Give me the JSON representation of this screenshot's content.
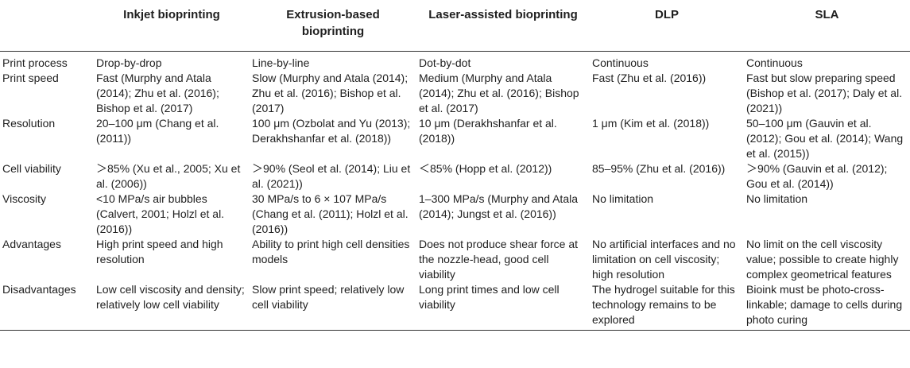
{
  "table": {
    "headers": [
      "",
      "Inkjet bioprinting",
      "Extrusion-based bioprinting",
      "Laser-assisted bioprinting",
      "DLP",
      "SLA"
    ],
    "rows": [
      {
        "label": "Print process",
        "cells": [
          "Drop-by-drop",
          "Line-by-line",
          "Dot-by-dot",
          "Continuous",
          "Continuous"
        ]
      },
      {
        "label": "Print speed",
        "cells": [
          "Fast (Murphy and Atala (2014); Zhu et al. (2016); Bishop et al. (2017)",
          "Slow (Murphy and Atala (2014); Zhu et al. (2016); Bishop et al. (2017)",
          "Medium (Murphy and Atala (2014); Zhu et al. (2016); Bishop et al. (2017)",
          "Fast (Zhu et al. (2016))",
          "Fast but slow preparing speed (Bishop et al. (2017); Daly et al. (2021))"
        ]
      },
      {
        "label": "Resolution",
        "cells": [
          "20–100 μm (Chang et al. (2011))",
          "100 μm (Ozbolat and Yu (2013); Derakhshanfar et al. (2018))",
          "10 μm (Derakhshanfar et al. (2018))",
          "1 μm (Kim et al. (2018))",
          "50–100 μm (Gauvin et al. (2012); Gou et al. (2014); Wang et al. (2015))"
        ]
      },
      {
        "label": "Cell viability",
        "cells": [
          "＞85% (Xu et al., 2005; Xu et al. (2006))",
          "＞90% (Seol et al. (2014); Liu et al. (2021))",
          "＜85% (Hopp et al. (2012))",
          "85–95% (Zhu et al. (2016))",
          "＞90% (Gauvin et al. (2012); Gou et al. (2014))"
        ]
      },
      {
        "label": "Viscosity",
        "cells": [
          "<10 MPa/s air bubbles (Calvert, 2001; Holzl et al. (2016))",
          "30 MPa/s to 6 × 107 MPa/s (Chang et al. (2011); Holzl et al. (2016))",
          "1–300 MPa/s (Murphy and Atala (2014); Jungst et al. (2016))",
          "No limitation",
          "No limitation"
        ]
      },
      {
        "label": "Advantages",
        "cells": [
          "High print speed and high resolution",
          "Ability to print high cell densities models",
          "Does not produce shear force at the nozzle-head, good cell viability",
          "No artificial interfaces and no limitation on cell viscosity; high resolution",
          "No limit on the cell viscosity value; possible to create highly complex geometrical features"
        ]
      },
      {
        "label": "Disadvantages",
        "cells": [
          "Low cell viscosity and density; relatively low cell viability",
          "Slow print speed; relatively low cell viability",
          "Long print times and low cell viability",
          "The hydrogel suitable for this technology remains to be explored",
          "Bioink must be photo-cross-linkable; damage to cells during photo curing"
        ]
      }
    ]
  }
}
